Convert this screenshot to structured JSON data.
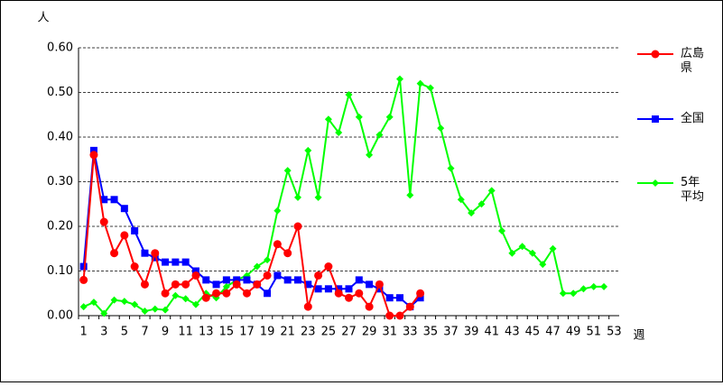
{
  "chart_data": {
    "type": "line",
    "y_label": "人",
    "x_label": "週",
    "categories": [
      1,
      null,
      3,
      null,
      5,
      null,
      7,
      null,
      9,
      null,
      11,
      null,
      13,
      null,
      15,
      null,
      17,
      null,
      19,
      null,
      21,
      null,
      23,
      null,
      25,
      null,
      27,
      null,
      29,
      null,
      31,
      null,
      33,
      null,
      35,
      null,
      37,
      null,
      39,
      null,
      41,
      null,
      43,
      null,
      45,
      null,
      47,
      null,
      49,
      null,
      51,
      null,
      53
    ],
    "ylim": [
      0,
      0.6
    ],
    "yticks": [
      {
        "value": 0,
        "label": "0.00"
      },
      {
        "value": 0.1,
        "label": "0.10"
      },
      {
        "value": 0.2,
        "label": "0.20"
      },
      {
        "value": 0.3,
        "label": "0.30"
      },
      {
        "value": 0.4,
        "label": "0.40"
      },
      {
        "value": 0.5,
        "label": "0.50"
      },
      {
        "value": 0.6,
        "label": "0.60"
      }
    ],
    "grid": true,
    "series": [
      {
        "name": "広島県",
        "color": "#ff0000",
        "marker": "circle",
        "values": [
          0.08,
          0.36,
          0.21,
          0.14,
          0.18,
          0.11,
          0.07,
          0.14,
          0.05,
          0.07,
          0.07,
          0.09,
          0.04,
          0.05,
          0.05,
          0.07,
          0.05,
          0.07,
          0.09,
          0.16,
          0.14,
          0.2,
          0.02,
          0.09,
          0.11,
          0.05,
          0.04,
          0.05,
          0.02,
          0.07,
          0.0,
          0.0,
          0.02,
          0.05,
          null,
          null,
          null,
          null,
          null,
          null,
          null,
          null,
          null,
          null,
          null,
          null,
          null,
          null,
          null,
          null,
          null,
          null,
          null
        ]
      },
      {
        "name": "全国",
        "color": "#0000ff",
        "marker": "square",
        "values": [
          0.11,
          0.37,
          0.26,
          0.26,
          0.24,
          0.19,
          0.14,
          0.13,
          0.12,
          0.12,
          0.12,
          0.1,
          0.08,
          0.07,
          0.08,
          0.08,
          0.08,
          0.07,
          0.05,
          0.09,
          0.08,
          0.08,
          0.07,
          0.06,
          0.06,
          0.06,
          0.06,
          0.08,
          0.07,
          0.06,
          0.04,
          0.04,
          0.02,
          0.04,
          null,
          null,
          null,
          null,
          null,
          null,
          null,
          null,
          null,
          null,
          null,
          null,
          null,
          null,
          null,
          null,
          null,
          null,
          null
        ]
      },
      {
        "name": "5年平均",
        "color": "#00ff00",
        "marker": "diamond",
        "values": [
          0.02,
          0.03,
          0.005,
          0.035,
          0.032,
          0.025,
          0.01,
          0.015,
          0.013,
          0.045,
          0.038,
          0.025,
          0.05,
          0.04,
          0.065,
          0.08,
          0.09,
          0.11,
          0.125,
          0.235,
          0.325,
          0.265,
          0.37,
          0.265,
          0.44,
          0.41,
          0.495,
          0.445,
          0.36,
          0.405,
          0.445,
          0.53,
          0.27,
          0.52,
          0.51,
          0.42,
          0.33,
          0.26,
          0.23,
          0.25,
          0.28,
          0.19,
          0.14,
          0.155,
          0.14,
          0.115,
          0.15,
          0.05,
          0.05,
          0.06,
          0.065,
          0.065,
          null
        ]
      }
    ]
  }
}
